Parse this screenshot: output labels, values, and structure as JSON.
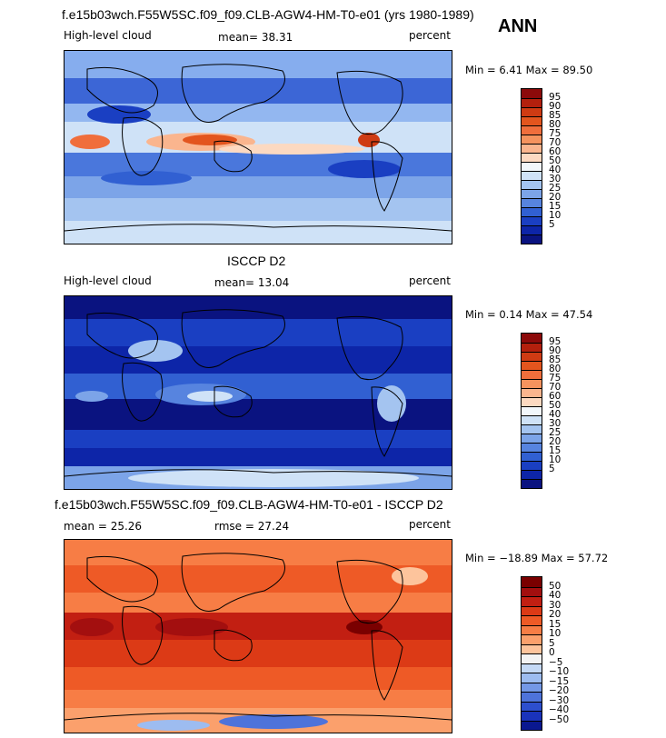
{
  "season": "ANN",
  "panels": [
    {
      "title": "f.e15b03wch.F55W5SC.f09_f09.CLB-AGW4-HM-T0-e01 (yrs 1980-1989)",
      "left_label": "High-level cloud",
      "center_label": "mean=  38.31",
      "right_label": "percent",
      "min_max": "Min =    6.41  Max =   89.50",
      "colorbar": {
        "colors": [
          "#8c0a0a",
          "#b3200d",
          "#cf3b13",
          "#e3551e",
          "#f06e3c",
          "#f5935e",
          "#fab58e",
          "#fcd9c1",
          "#f2f7fb",
          "#cfe2f7",
          "#a4c4f0",
          "#7ca4e8",
          "#5784df",
          "#3160d2",
          "#1a3fc2",
          "#0d25a8",
          "#0a1380"
        ],
        "labels": [
          "95",
          "90",
          "85",
          "80",
          "75",
          "70",
          "60",
          "50",
          "40",
          "30",
          "25",
          "20",
          "15",
          "10",
          "5"
        ]
      }
    },
    {
      "title": "ISCCP D2",
      "left_label": "High-level cloud",
      "center_label": "mean=  13.04",
      "right_label": "percent",
      "min_max": "Min =    0.14  Max =   47.54",
      "colorbar": {
        "colors": [
          "#8c0a0a",
          "#b3200d",
          "#cf3b13",
          "#e3551e",
          "#f06e3c",
          "#f5935e",
          "#fab58e",
          "#fcd9c1",
          "#f2f7fb",
          "#cfe2f7",
          "#a4c4f0",
          "#7ca4e8",
          "#5784df",
          "#3160d2",
          "#1a3fc2",
          "#0d25a8",
          "#0a1380"
        ],
        "labels": [
          "95",
          "90",
          "85",
          "80",
          "75",
          "70",
          "60",
          "50",
          "40",
          "30",
          "25",
          "20",
          "15",
          "10",
          "5"
        ]
      }
    },
    {
      "title": "f.e15b03wch.F55W5SC.f09_f09.CLB-AGW4-HM-T0-e01 - ISCCP D2",
      "left_label": "mean =   25.26",
      "center_label": "rmse =   27.24",
      "right_label": "percent",
      "min_max": "Min = −18.89  Max =   57.72",
      "colorbar": {
        "colors": [
          "#7a0000",
          "#a30f0f",
          "#c21f12",
          "#dc3a16",
          "#ee5a26",
          "#f77d45",
          "#fba06c",
          "#fdc49c",
          "#f3f3f3",
          "#c5d9f5",
          "#9dbcf0",
          "#7498e6",
          "#4e73da",
          "#2d4fce",
          "#1a33bb",
          "#0a1890"
        ],
        "labels": [
          "50",
          "40",
          "30",
          "20",
          "15",
          "10",
          "5",
          "0",
          "−5",
          "−10",
          "−15",
          "−20",
          "−30",
          "−40",
          "−50"
        ]
      }
    }
  ]
}
